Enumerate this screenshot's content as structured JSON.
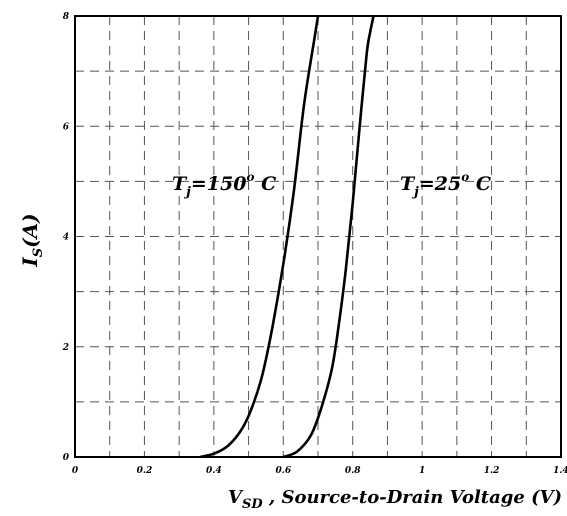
{
  "chart_data": {
    "type": "line",
    "xlabel": {
      "main": "V",
      "sub": "SD",
      "rest": " , Source-to-Drain Voltage (V)"
    },
    "ylabel": {
      "main": "I",
      "sub": "S",
      "rest": "(A)"
    },
    "xlim": [
      0,
      1.4
    ],
    "ylim": [
      0,
      8
    ],
    "xticks": [
      0,
      0.2,
      0.4,
      0.6,
      0.8,
      1,
      1.2,
      1.4
    ],
    "xtick_labels": [
      "0",
      "0.2",
      "0.4",
      "0.6",
      "0.8",
      "1",
      "1.2",
      "1.4"
    ],
    "yticks": [
      0,
      2,
      4,
      6,
      8
    ],
    "ytick_labels": [
      "0",
      "2",
      "4",
      "6",
      "8"
    ],
    "grid": "dashed",
    "series": [
      {
        "name": "Tj=150° C",
        "x": [
          0.36,
          0.4,
          0.44,
          0.48,
          0.51,
          0.54,
          0.57,
          0.6,
          0.63,
          0.66,
          0.69,
          0.7
        ],
        "y": [
          0,
          0.06,
          0.2,
          0.5,
          0.9,
          1.5,
          2.4,
          3.5,
          4.8,
          6.4,
          7.6,
          8.0
        ]
      },
      {
        "name": "Tj=25° C",
        "x": [
          0.6,
          0.64,
          0.68,
          0.71,
          0.74,
          0.76,
          0.78,
          0.8,
          0.82,
          0.84,
          0.85,
          0.86
        ],
        "y": [
          0,
          0.1,
          0.4,
          0.9,
          1.6,
          2.4,
          3.4,
          4.6,
          6.0,
          7.3,
          7.7,
          8.0
        ]
      }
    ],
    "annotations": [
      {
        "main": "T",
        "sub": "j",
        "val": "=150",
        "sup": "o",
        "unit": " C"
      },
      {
        "main": "T",
        "sub": "j",
        "val": "=25",
        "sup": "o",
        "unit": " C"
      }
    ]
  }
}
